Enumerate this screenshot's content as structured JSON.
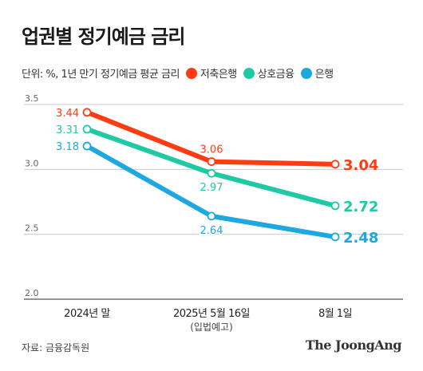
{
  "title": "업권별 정기예금 금리",
  "unit_note": "단위: %, 1년 만기 정기예금 평균 금리",
  "source": "자료: 금융감독원",
  "brand": "The JoongAng",
  "chart_data": {
    "type": "line",
    "title": "업권별 정기예금 금리",
    "categories": [
      "2024년 말",
      "2025년 5월 16일",
      "8월 1일"
    ],
    "category_sublabels": [
      "",
      "(입법예고)",
      ""
    ],
    "ylim": [
      2.0,
      3.5
    ],
    "yticks": [
      2.0,
      2.5,
      3.0,
      3.5
    ],
    "ytick_labels": [
      "2.0",
      "2.5",
      "3.0",
      "3.5"
    ],
    "grid": true,
    "legend_position": "top",
    "series": [
      {
        "name": "저축은행",
        "color": "#ff3b14",
        "values": [
          3.44,
          3.06,
          3.04
        ],
        "labels": [
          "3.44",
          "3.06",
          "3.04"
        ],
        "label_pos": [
          "left",
          "above",
          "right"
        ]
      },
      {
        "name": "상호금융",
        "color": "#1ec9a4",
        "values": [
          3.31,
          2.97,
          2.72
        ],
        "labels": [
          "3.31",
          "2.97",
          "2.72"
        ],
        "label_pos": [
          "left",
          "below",
          "right"
        ]
      },
      {
        "name": "은행",
        "color": "#1da8e0",
        "values": [
          3.18,
          2.64,
          2.48
        ],
        "labels": [
          "3.18",
          "2.64",
          "2.48"
        ],
        "label_pos": [
          "left",
          "below",
          "right"
        ]
      }
    ]
  }
}
